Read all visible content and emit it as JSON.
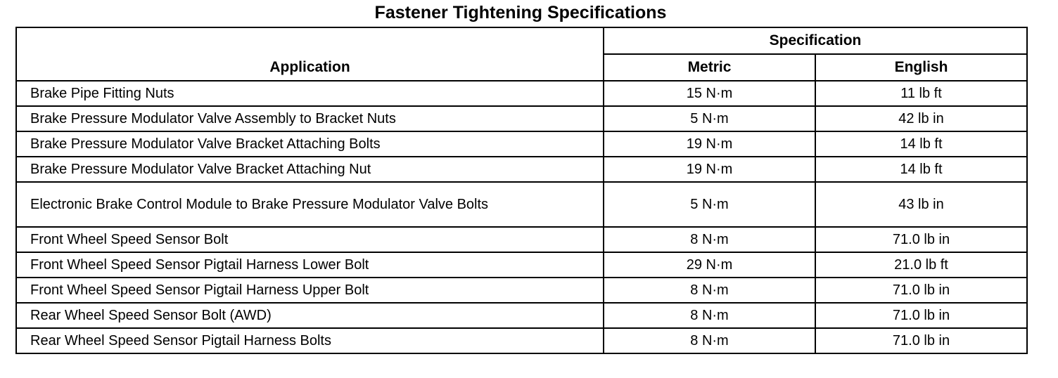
{
  "title": "Fastener Tightening Specifications",
  "headers": {
    "application": "Application",
    "specification": "Specification",
    "metric": "Metric",
    "english": "English"
  },
  "rows": [
    {
      "application": "Brake Pipe Fitting Nuts",
      "metric": "15 N·m",
      "english": "11 lb ft"
    },
    {
      "application": "Brake Pressure Modulator Valve Assembly to Bracket Nuts",
      "metric": "5 N·m",
      "english": "42 lb in"
    },
    {
      "application": "Brake Pressure Modulator Valve Bracket Attaching Bolts",
      "metric": "19 N·m",
      "english": "14 lb ft"
    },
    {
      "application": "Brake Pressure Modulator Valve Bracket Attaching Nut",
      "metric": "19 N·m",
      "english": "14 lb ft"
    },
    {
      "application": "Electronic Brake Control Module to Brake Pressure Modulator Valve Bolts",
      "metric": "5 N·m",
      "english": "43 lb in"
    },
    {
      "application": "Front Wheel Speed Sensor Bolt",
      "metric": "8 N·m",
      "english": "71.0 lb in"
    },
    {
      "application": "Front Wheel Speed Sensor Pigtail Harness Lower Bolt",
      "metric": "29 N·m",
      "english": "21.0 lb ft"
    },
    {
      "application": "Front Wheel Speed Sensor Pigtail Harness Upper Bolt",
      "metric": "8 N·m",
      "english": "71.0 lb in"
    },
    {
      "application": "Rear Wheel Speed Sensor Bolt (AWD)",
      "metric": "8 N·m",
      "english": "71.0 lb in"
    },
    {
      "application": "Rear Wheel Speed Sensor Pigtail Harness Bolts",
      "metric": "8 N·m",
      "english": "71.0 lb in"
    }
  ]
}
